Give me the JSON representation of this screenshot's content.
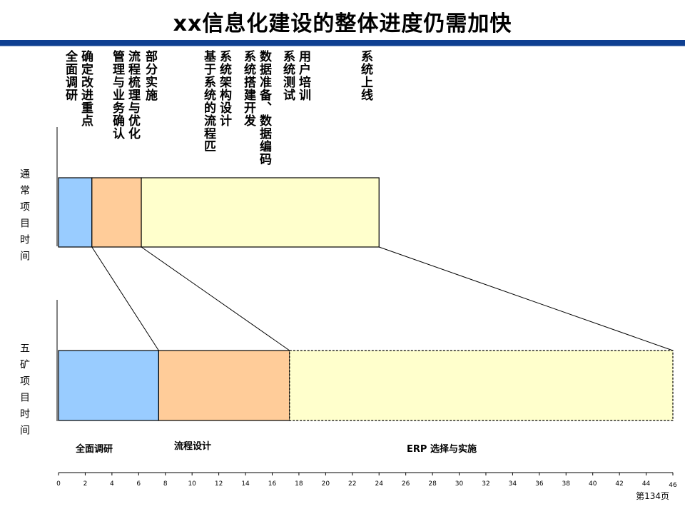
{
  "title": "xx信息化建设的整体进度仍需加快",
  "phase_headers": [
    {
      "text": "全面调研",
      "col": 0
    },
    {
      "text": "确定改进重点",
      "col": 1
    },
    {
      "text": "管理与业务确认",
      "col": 2
    },
    {
      "text": "流程梳理与优化",
      "col": 3
    },
    {
      "text": "部分实施",
      "col": 4
    },
    {
      "text": "基于系统的流程匹",
      "col": 5
    },
    {
      "text": "系统架构设计",
      "col": 6
    },
    {
      "text": "系统搭建开发",
      "col": 7
    },
    {
      "text": "数据准备、数据编码",
      "col": 8
    },
    {
      "text": "系统测试",
      "col": 9
    },
    {
      "text": "用户培训",
      "col": 10
    },
    {
      "text": "系统上线",
      "col": 11
    }
  ],
  "rows": [
    {
      "label": "通常项目时间"
    },
    {
      "label": "五矿项目时间"
    }
  ],
  "phase_labels": {
    "research": "全面调研",
    "process": "流程设计",
    "erp": "ERP  选择与实施"
  },
  "chart_data": {
    "type": "gantt",
    "x_ticks": [
      0,
      2,
      4,
      6,
      8,
      10,
      12,
      14,
      16,
      18,
      20,
      22,
      24,
      26,
      28,
      30,
      32,
      34,
      36,
      38,
      40,
      42,
      44,
      46
    ],
    "xlim": [
      0,
      46
    ],
    "series": [
      {
        "name": "通常项目时间",
        "segments": [
          {
            "start": 0,
            "end": 2.5,
            "color": "#99ccff"
          },
          {
            "start": 2.5,
            "end": 6.2,
            "color": "#ffcc99"
          },
          {
            "start": 6.2,
            "end": 24,
            "color": "#ffffcc"
          }
        ]
      },
      {
        "name": "五矿项目时间",
        "segments": [
          {
            "start": 0,
            "end": 7.5,
            "color": "#99ccff",
            "label": "全面调研"
          },
          {
            "start": 7.5,
            "end": 17.3,
            "color": "#ffcc99",
            "label": "流程设计"
          },
          {
            "start": 17.3,
            "end": 46,
            "color": "#ffffcc",
            "label": "ERP  选择与实施",
            "dashed": true
          }
        ]
      }
    ]
  },
  "page_label": "第134页",
  "colors": {
    "title_bar": "#0f3f91",
    "research": "#99ccff",
    "process": "#ffcc99",
    "implementation": "#ffffcc"
  }
}
